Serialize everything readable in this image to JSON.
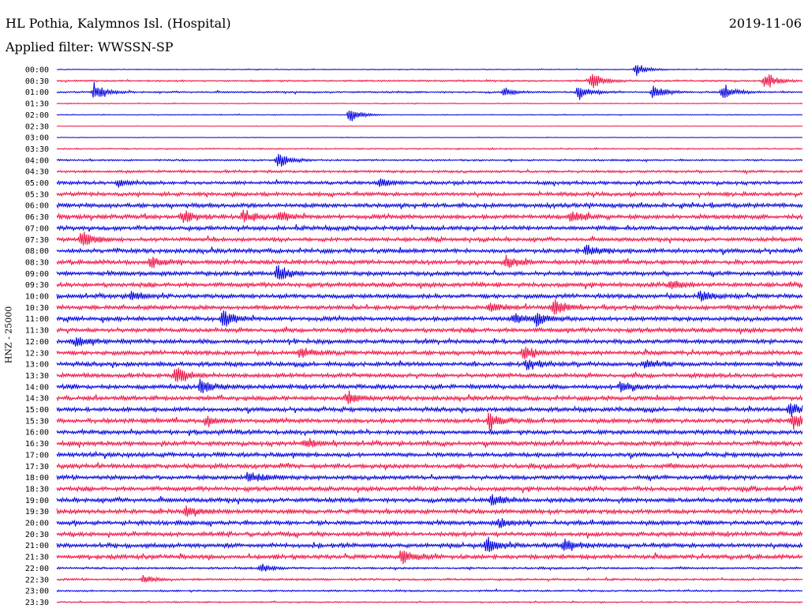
{
  "header": {
    "station": "HL Pothia, Kalymnos Isl. (Hospital)",
    "date": "2019-11-06",
    "filter": "Applied filter: WWSSN-SP"
  },
  "side_label": "HNZ - 25000",
  "colors": {
    "even_hour_trace": "#0000dd",
    "half_hour_trace": "#ee1144",
    "text": "#000000",
    "background": "#ffffff"
  },
  "chart_data": {
    "type": "line",
    "title": "HL Pothia, Kalymnos Isl. (Hospital)",
    "ylabel": "HNZ - 25000",
    "row_labels": [
      "00:00",
      "00:30",
      "01:00",
      "01:30",
      "02:00",
      "02:30",
      "03:00",
      "03:30",
      "04:00",
      "04:30",
      "05:00",
      "05:30",
      "06:00",
      "06:30",
      "07:00",
      "07:30",
      "08:00",
      "08:30",
      "09:00",
      "09:30",
      "10:00",
      "10:30",
      "11:00",
      "11:30",
      "12:00",
      "12:30",
      "13:00",
      "13:30",
      "14:00",
      "14:30",
      "15:00",
      "15:30",
      "16:00",
      "16:30",
      "17:00",
      "17:30",
      "18:00",
      "18:30",
      "19:00",
      "19:30",
      "20:00",
      "20:30",
      "21:00",
      "21:30",
      "22:00",
      "22:30",
      "23:00",
      "23:30"
    ],
    "row_minutes": 30,
    "noise_level": [
      0.5,
      1.0,
      1.0,
      0.5,
      0.5,
      0.3,
      0.3,
      0.8,
      1.0,
      1.5,
      2.0,
      2.2,
      2.5,
      2.5,
      2.5,
      2.2,
      2.5,
      2.5,
      2.5,
      2.5,
      2.5,
      2.5,
      2.5,
      2.5,
      2.5,
      2.5,
      2.5,
      2.5,
      2.5,
      2.5,
      2.5,
      2.5,
      2.5,
      2.5,
      2.5,
      2.5,
      2.5,
      2.5,
      2.5,
      2.5,
      2.5,
      2.5,
      2.5,
      2.5,
      1.2,
      1.2,
      1.0,
      0.8
    ],
    "events": [
      {
        "row": 0,
        "minute": 23.3,
        "amp": 9
      },
      {
        "row": 1,
        "minute": 21.5,
        "amp": 12
      },
      {
        "row": 1,
        "minute": 28.5,
        "amp": 12
      },
      {
        "row": 2,
        "minute": 1.5,
        "amp": 12
      },
      {
        "row": 2,
        "minute": 18.0,
        "amp": 6
      },
      {
        "row": 2,
        "minute": 21.0,
        "amp": 10
      },
      {
        "row": 2,
        "minute": 24.0,
        "amp": 11
      },
      {
        "row": 2,
        "minute": 26.8,
        "amp": 11
      },
      {
        "row": 4,
        "minute": 11.8,
        "amp": 10
      },
      {
        "row": 8,
        "minute": 8.9,
        "amp": 11
      },
      {
        "row": 10,
        "minute": 2.5,
        "amp": 6
      },
      {
        "row": 10,
        "minute": 13.0,
        "amp": 6
      },
      {
        "row": 13,
        "minute": 5.1,
        "amp": 9
      },
      {
        "row": 13,
        "minute": 7.5,
        "amp": 8
      },
      {
        "row": 13,
        "minute": 9.0,
        "amp": 7
      },
      {
        "row": 13,
        "minute": 20.7,
        "amp": 9
      },
      {
        "row": 15,
        "minute": 1.0,
        "amp": 12
      },
      {
        "row": 16,
        "minute": 21.3,
        "amp": 8
      },
      {
        "row": 17,
        "minute": 3.8,
        "amp": 7
      },
      {
        "row": 17,
        "minute": 18.1,
        "amp": 8
      },
      {
        "row": 18,
        "minute": 8.9,
        "amp": 10
      },
      {
        "row": 19,
        "minute": 24.7,
        "amp": 6
      },
      {
        "row": 20,
        "minute": 3.0,
        "amp": 6
      },
      {
        "row": 20,
        "minute": 25.9,
        "amp": 7
      },
      {
        "row": 21,
        "minute": 17.4,
        "amp": 7
      },
      {
        "row": 21,
        "minute": 20.0,
        "amp": 10
      },
      {
        "row": 22,
        "minute": 6.7,
        "amp": 12
      },
      {
        "row": 22,
        "minute": 18.4,
        "amp": 8
      },
      {
        "row": 22,
        "minute": 19.3,
        "amp": 8
      },
      {
        "row": 24,
        "minute": 0.8,
        "amp": 7
      },
      {
        "row": 25,
        "minute": 9.8,
        "amp": 7
      },
      {
        "row": 25,
        "minute": 18.8,
        "amp": 9
      },
      {
        "row": 26,
        "minute": 18.9,
        "amp": 7
      },
      {
        "row": 26,
        "minute": 23.7,
        "amp": 7
      },
      {
        "row": 27,
        "minute": 4.8,
        "amp": 12
      },
      {
        "row": 28,
        "minute": 5.8,
        "amp": 11
      },
      {
        "row": 28,
        "minute": 22.7,
        "amp": 7
      },
      {
        "row": 29,
        "minute": 11.7,
        "amp": 9
      },
      {
        "row": 30,
        "minute": 29.5,
        "amp": 9
      },
      {
        "row": 31,
        "minute": 6.0,
        "amp": 7
      },
      {
        "row": 31,
        "minute": 17.4,
        "amp": 11
      },
      {
        "row": 31,
        "minute": 29.6,
        "amp": 11
      },
      {
        "row": 33,
        "minute": 10.0,
        "amp": 6
      },
      {
        "row": 36,
        "minute": 7.7,
        "amp": 8
      },
      {
        "row": 38,
        "minute": 17.5,
        "amp": 6
      },
      {
        "row": 39,
        "minute": 5.2,
        "amp": 7
      },
      {
        "row": 40,
        "minute": 17.8,
        "amp": 6
      },
      {
        "row": 42,
        "minute": 17.3,
        "amp": 11
      },
      {
        "row": 42,
        "minute": 20.4,
        "amp": 9
      },
      {
        "row": 43,
        "minute": 13.9,
        "amp": 10
      },
      {
        "row": 44,
        "minute": 8.2,
        "amp": 6
      },
      {
        "row": 45,
        "minute": 3.5,
        "amp": 6
      }
    ]
  }
}
